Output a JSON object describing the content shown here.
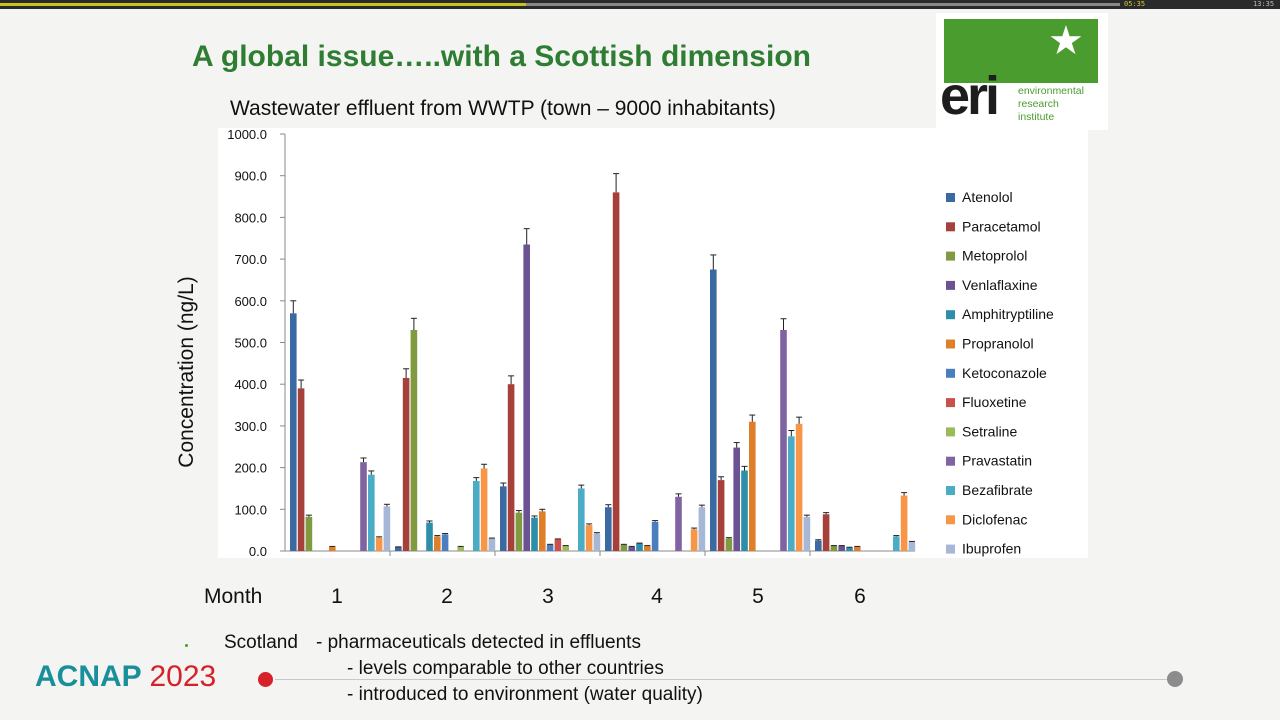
{
  "player": {
    "elapsed": "05:35",
    "total": "13:35",
    "progress_fraction": 0.47
  },
  "slide": {
    "title": "A global issue…..with a Scottish dimension",
    "logo": {
      "mark": "eri",
      "lines": [
        "environmental",
        "research",
        "institute"
      ]
    },
    "bullets": {
      "lead": "Scotland",
      "line1": "- pharmaceuticals detected in effluents",
      "line2": "- levels comparable to other countries",
      "line3": "- introduced to environment (water quality)"
    },
    "footer": {
      "conference": "ACNAP",
      "year": "2023",
      "accent": "#d6202a",
      "brand": "#1a8f9c"
    }
  },
  "chart_data": {
    "type": "bar",
    "title": "Wastewater effluent from WWTP (town – 9000 inhabitants)",
    "ylabel": "Concentration (ng/L)",
    "xlabel": "Month",
    "ylim": [
      0,
      1000
    ],
    "yticks": [
      "0.0",
      "100.0",
      "200.0",
      "300.0",
      "400.0",
      "500.0",
      "600.0",
      "700.0",
      "800.0",
      "900.0",
      "1000.0"
    ],
    "categories": [
      "1",
      "2",
      "3",
      "4",
      "5",
      "6"
    ],
    "legend_position": "right",
    "series": [
      {
        "name": "Atenolol",
        "color": "#3b6aa3",
        "values": [
          570,
          10,
          155,
          105,
          675,
          25
        ],
        "err": [
          30,
          0,
          8,
          6,
          35,
          2
        ]
      },
      {
        "name": "Paracetamol",
        "color": "#a5403b",
        "values": [
          390,
          415,
          400,
          860,
          170,
          88
        ],
        "err": [
          20,
          22,
          20,
          45,
          8,
          4
        ]
      },
      {
        "name": "Metoprolol",
        "color": "#7f9a40",
        "values": [
          82,
          530,
          92,
          15,
          30,
          12
        ],
        "err": [
          4,
          28,
          5,
          1,
          2,
          1
        ]
      },
      {
        "name": "Venlaflaxine",
        "color": "#6b5393",
        "values": [
          0,
          0,
          735,
          10,
          248,
          12
        ],
        "err": [
          0,
          0,
          38,
          1,
          12,
          1
        ]
      },
      {
        "name": "Amphitryptiline",
        "color": "#2c8ea8",
        "values": [
          0,
          68,
          80,
          18,
          193,
          8
        ],
        "err": [
          0,
          4,
          4,
          1,
          10,
          1
        ]
      },
      {
        "name": "Propranolol",
        "color": "#e07f2a",
        "values": [
          10,
          35,
          95,
          12,
          310,
          10
        ],
        "err": [
          1,
          2,
          5,
          1,
          16,
          1
        ]
      },
      {
        "name": "Ketoconazole",
        "color": "#4a7ebf",
        "values": [
          0,
          40,
          15,
          70,
          0,
          0
        ],
        "err": [
          0,
          2,
          1,
          3,
          0,
          0
        ]
      },
      {
        "name": "Fluoxetine",
        "color": "#c9504c",
        "values": [
          0,
          0,
          28,
          0,
          0,
          0
        ],
        "err": [
          0,
          0,
          1,
          0,
          0,
          0
        ]
      },
      {
        "name": "Setraline",
        "color": "#9bbb59",
        "values": [
          0,
          10,
          12,
          0,
          0,
          0
        ],
        "err": [
          0,
          1,
          1,
          0,
          0,
          0
        ]
      },
      {
        "name": "Pravastatin",
        "color": "#8064a2",
        "values": [
          213,
          0,
          0,
          130,
          530,
          0
        ],
        "err": [
          10,
          0,
          0,
          7,
          27,
          0
        ]
      },
      {
        "name": "Bezafibrate",
        "color": "#4bacc6",
        "values": [
          183,
          168,
          150,
          0,
          275,
          35
        ],
        "err": [
          9,
          8,
          8,
          0,
          14,
          2
        ]
      },
      {
        "name": "Diclofenac",
        "color": "#f79646",
        "values": [
          32,
          198,
          62,
          52,
          305,
          133
        ],
        "err": [
          2,
          10,
          3,
          3,
          16,
          7
        ]
      },
      {
        "name": "Ibuprofen",
        "color": "#a6b8d6",
        "values": [
          107,
          30,
          42,
          105,
          82,
          22
        ],
        "err": [
          5,
          1,
          2,
          5,
          4,
          1
        ]
      }
    ]
  }
}
